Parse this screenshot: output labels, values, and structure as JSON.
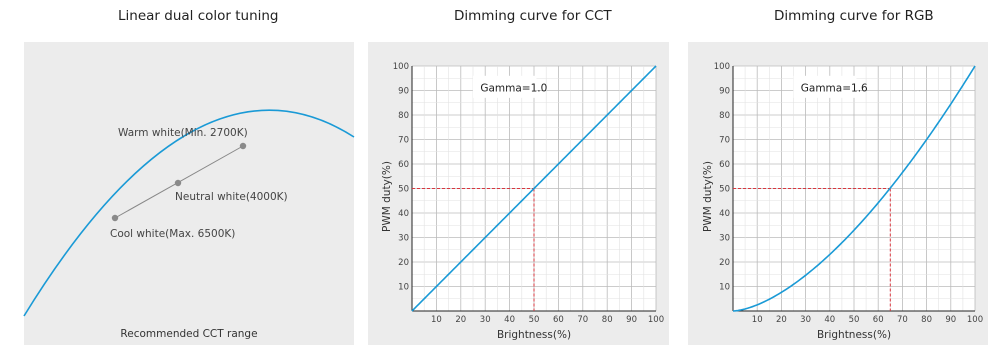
{
  "panels": [
    {
      "title": "Linear dual color tuning"
    },
    {
      "title": "Dimming curve for CCT"
    },
    {
      "title": "Dimming curve for RGB"
    }
  ],
  "chart_data": [
    {
      "type": "diagram",
      "title": "Linear dual color tuning",
      "caption": "Recommended CCT range",
      "points": [
        {
          "label": "Warm white(Min. 2700K)"
        },
        {
          "label": "Neutral white(4000K)"
        },
        {
          "label": "Cool white(Max. 6500K)"
        }
      ],
      "colors": {
        "background": "#ececec",
        "curve": "#1a9ad6",
        "line": "#888888",
        "marker": "#8a8a8a"
      }
    },
    {
      "type": "line",
      "title": "Dimming curve for CCT",
      "xlabel": "Brightness(%)",
      "ylabel": "PWM duty(%)",
      "xlim": [
        0,
        100
      ],
      "ylim": [
        0,
        100
      ],
      "xticks": [
        10,
        20,
        30,
        40,
        50,
        60,
        70,
        80,
        90,
        100
      ],
      "yticks": [
        10,
        20,
        30,
        40,
        50,
        60,
        70,
        80,
        90,
        100
      ],
      "grid": true,
      "annotation": "Gamma=1.0",
      "gamma": 1.0,
      "marker_point": {
        "x": 50,
        "y": 50
      },
      "colors": {
        "curve": "#1a9ad6",
        "guide": "#d9363e",
        "grid": "#bbbbbb"
      }
    },
    {
      "type": "line",
      "title": "Dimming curve for RGB",
      "xlabel": "Brightness(%)",
      "ylabel": "PWM duty(%)",
      "xlim": [
        0,
        100
      ],
      "ylim": [
        0,
        100
      ],
      "xticks": [
        10,
        20,
        30,
        40,
        50,
        60,
        70,
        80,
        90,
        100
      ],
      "yticks": [
        10,
        20,
        30,
        40,
        50,
        60,
        70,
        80,
        90,
        100
      ],
      "grid": true,
      "annotation": "Gamma=1.6",
      "gamma": 1.6,
      "marker_point": {
        "x": 65,
        "y": 50
      },
      "colors": {
        "curve": "#1a9ad6",
        "guide": "#d9363e",
        "grid": "#bbbbbb"
      }
    }
  ]
}
